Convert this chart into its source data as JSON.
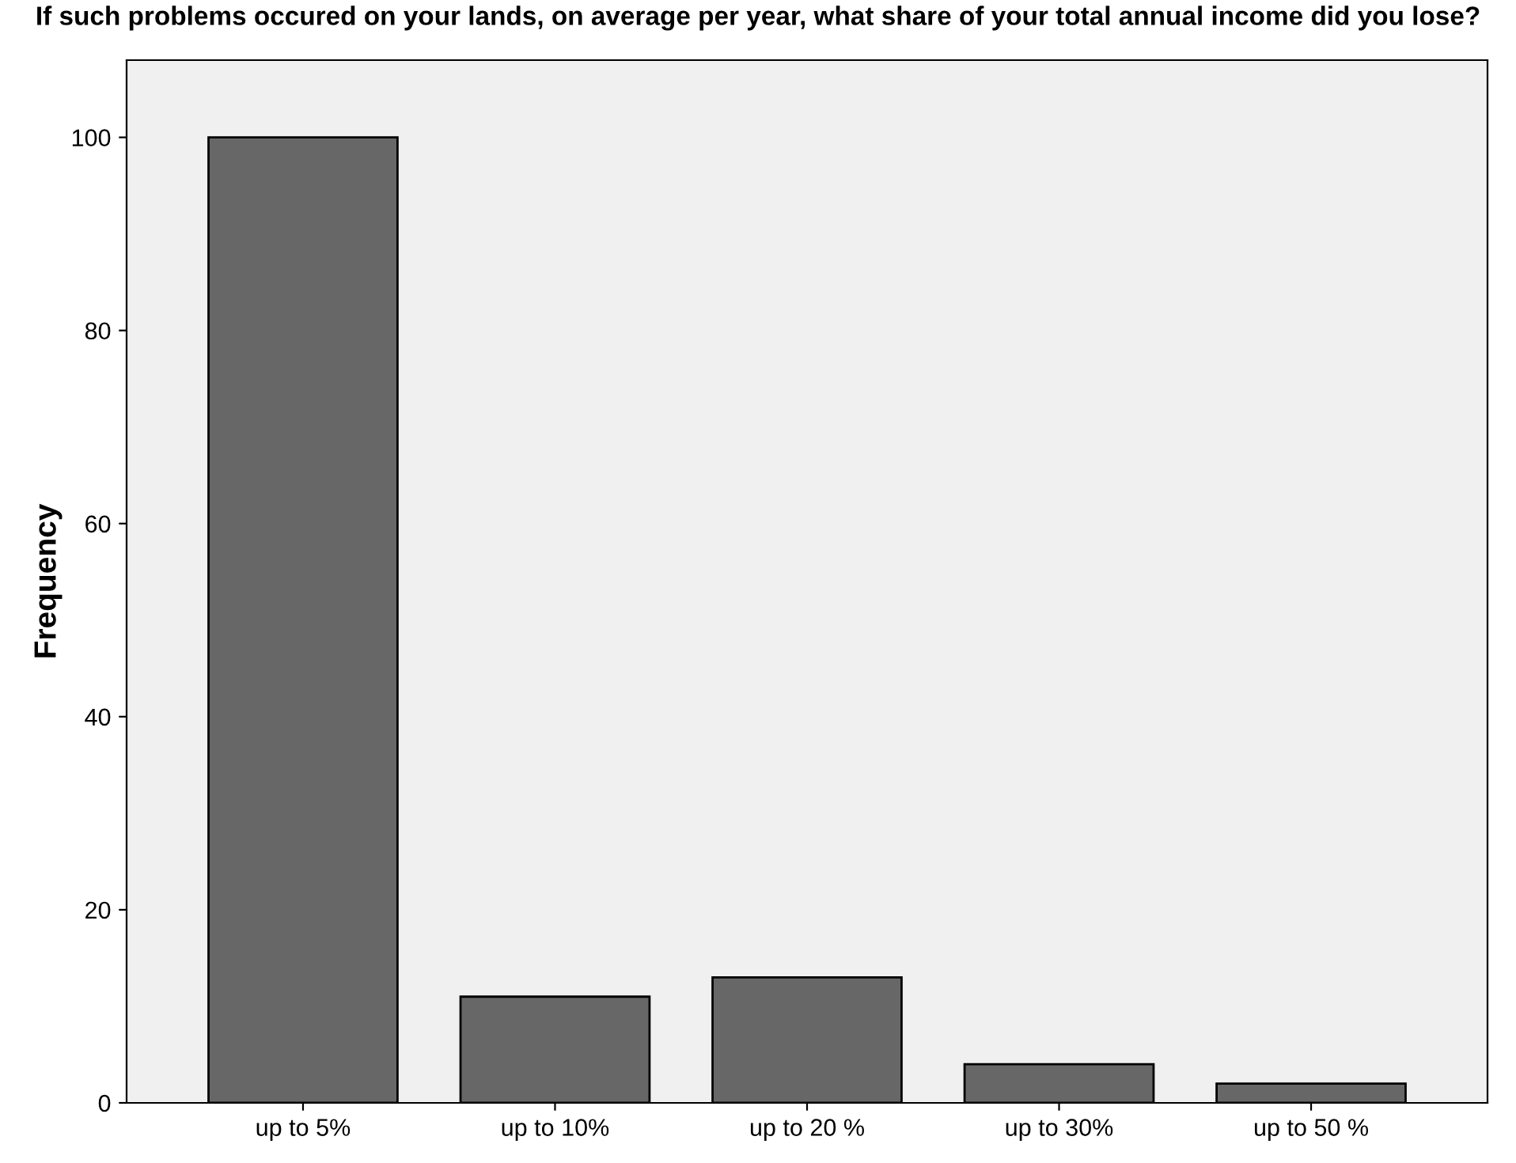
{
  "chart_data": {
    "type": "bar",
    "title": "If such problems occured on your lands, on average per year, what share of your total annual income did you lose?",
    "ylabel": "Frequency",
    "categories": [
      "up to 5%",
      "up to 10%",
      "up to 20 %",
      "up to 30%",
      "up to 50 %"
    ],
    "values": [
      100,
      11,
      13,
      4,
      2
    ],
    "color": "#676767",
    "ylim": [
      0,
      108
    ],
    "yticks": [
      0,
      20,
      40,
      60,
      80,
      100
    ],
    "grid": false
  }
}
